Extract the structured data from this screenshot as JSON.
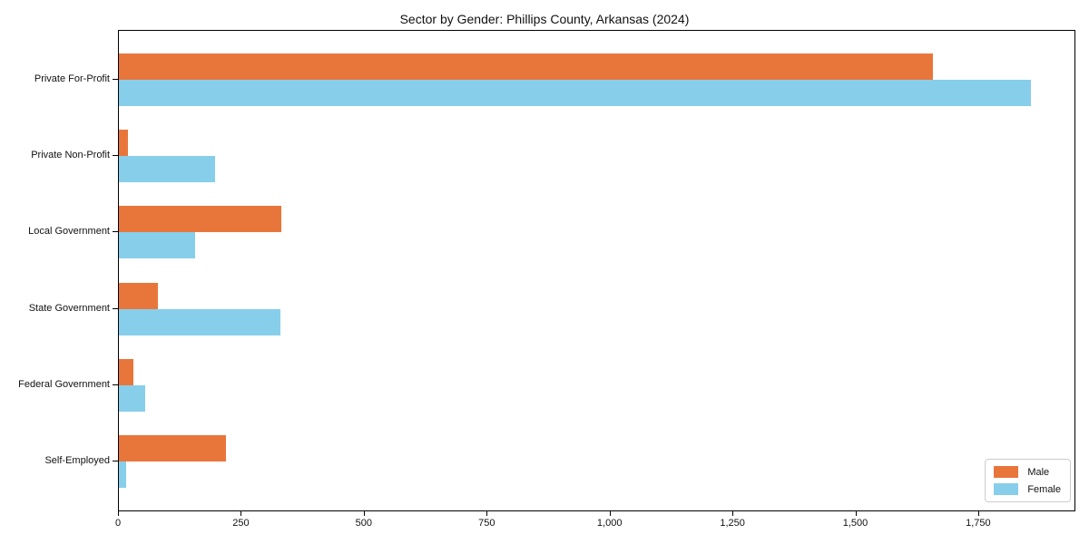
{
  "chart_data": {
    "type": "bar",
    "orientation": "horizontal",
    "title": "Sector by Gender: Phillips County, Arkansas (2024)",
    "categories": [
      "Private For-Profit",
      "Private Non-Profit",
      "Local Government",
      "State Government",
      "Federal Government",
      "Self-Employed"
    ],
    "series": [
      {
        "name": "Male",
        "color": "#e8763b",
        "values": [
          1655,
          18,
          330,
          80,
          30,
          218
        ]
      },
      {
        "name": "Female",
        "color": "#87ceeb",
        "values": [
          1855,
          195,
          155,
          328,
          54,
          15
        ]
      }
    ],
    "xlabel": "",
    "ylabel": "",
    "xlim": [
      0,
      1944
    ],
    "xticks": [
      0,
      250,
      500,
      750,
      1000,
      1250,
      1500,
      1750
    ],
    "xtick_labels": [
      "0",
      "250",
      "500",
      "750",
      "1,000",
      "1,250",
      "1,500",
      "1,750"
    ],
    "grid": false,
    "legend_position": "lower right",
    "frame_color": "#000000"
  }
}
